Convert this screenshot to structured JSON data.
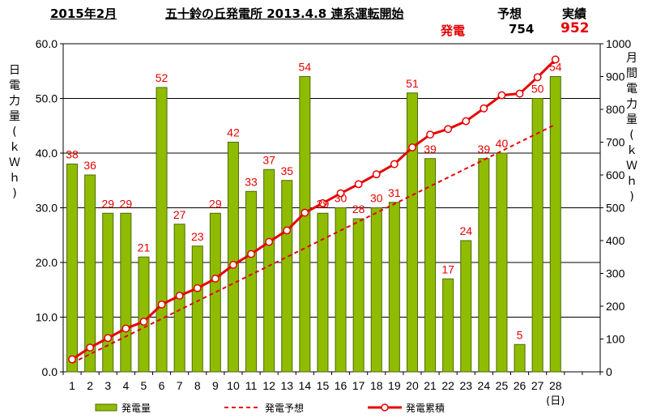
{
  "header": {
    "month": "2015年2月",
    "plant": "五十鈴の丘発電所 2013.4.8 連系運転開始",
    "forecast_label": "予想",
    "actual_label": "実績",
    "generation_label": "発電",
    "forecast_value": "754",
    "actual_value": "952"
  },
  "colors": {
    "bar": "#8fbc00",
    "bar_edge": "#4d6a00",
    "line": "#e60000",
    "gridline": "#000000"
  },
  "chart_data": {
    "type": "bar",
    "categories": [
      "1",
      "2",
      "3",
      "4",
      "5",
      "6",
      "7",
      "8",
      "9",
      "10",
      "11",
      "12",
      "13",
      "14",
      "15",
      "16",
      "17",
      "18",
      "19",
      "20",
      "21",
      "22",
      "23",
      "24",
      "25",
      "26",
      "27",
      "28"
    ],
    "x_unit": "(日)",
    "left_axis": {
      "label": "日電力量(kWh)",
      "ylim": [
        0,
        60
      ],
      "ticks": [
        "0.0",
        "10.0",
        "20.0",
        "30.0",
        "40.0",
        "50.0",
        "60.0"
      ]
    },
    "right_axis": {
      "label": "月間電力量(kWh)",
      "ylim": [
        0,
        1000
      ],
      "ticks": [
        "0",
        "100",
        "200",
        "300",
        "400",
        "500",
        "600",
        "700",
        "800",
        "900",
        "1000"
      ]
    },
    "series": [
      {
        "name": "発電量",
        "kind": "bar",
        "axis": "left",
        "values": [
          38,
          36,
          29,
          29,
          21,
          52,
          27,
          23,
          29,
          42,
          33,
          37,
          35,
          54,
          29,
          30,
          28,
          30,
          31,
          51,
          39,
          17,
          24,
          39,
          40,
          5,
          50,
          54
        ],
        "labels": [
          "38",
          "36",
          "29",
          "29",
          "21",
          "52",
          "27",
          "23",
          "29",
          "42",
          "33",
          "37",
          "35",
          "54",
          "29",
          "30",
          "28",
          "30",
          "31",
          "51",
          "39",
          "17",
          "24",
          "39",
          "40",
          "5",
          "50",
          "54"
        ]
      },
      {
        "name": "発電予想",
        "kind": "dashed-line",
        "axis": "right",
        "start": [
          1,
          27
        ],
        "end": [
          28,
          754
        ]
      },
      {
        "name": "発電累積",
        "kind": "line-marker",
        "axis": "right",
        "values": [
          38,
          74,
          103,
          132,
          153,
          205,
          232,
          255,
          284,
          326,
          359,
          396,
          431,
          485,
          514,
          544,
          572,
          602,
          633,
          684,
          723,
          740,
          764,
          803,
          843,
          848,
          898,
          952
        ]
      }
    ],
    "legend": {
      "position": "bottom"
    }
  }
}
